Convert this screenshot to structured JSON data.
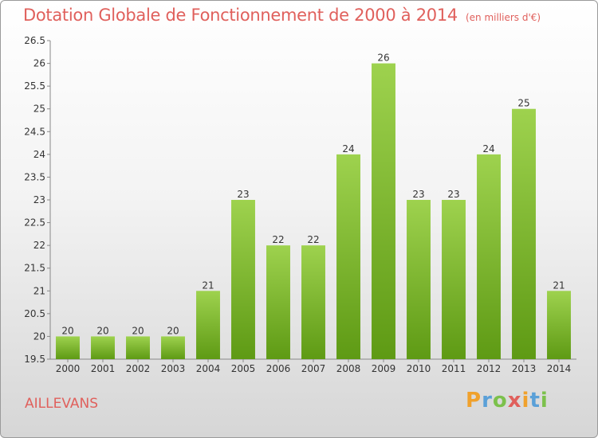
{
  "header": {
    "title": "Dotation Globale de Fonctionnement de 2000 à 2014",
    "subtitle": "(en milliers d'€)"
  },
  "footer": {
    "commune": "AILLEVANS",
    "logo_letters": [
      "P",
      "r",
      "o",
      "x",
      "i",
      "t",
      "i"
    ],
    "logo_colors": [
      "#f0a12c",
      "#5aa0d8",
      "#7cc14c",
      "#e0605c",
      "#f0a12c",
      "#5aa0d8",
      "#7cc14c"
    ]
  },
  "colors": {
    "bar_top": "#9ed24e",
    "bar_bottom": "#5e9a14",
    "title": "#e0605c"
  },
  "chart_data": {
    "type": "bar",
    "title": "Dotation Globale de Fonctionnement de 2000 à 2014",
    "subtitle": "(en milliers d'€)",
    "categories": [
      "2000",
      "2001",
      "2002",
      "2003",
      "2004",
      "2005",
      "2006",
      "2007",
      "2008",
      "2009",
      "2010",
      "2011",
      "2012",
      "2013",
      "2014"
    ],
    "values": [
      20,
      20,
      20,
      20,
      21,
      23,
      22,
      22,
      24,
      26,
      23,
      23,
      24,
      25,
      21
    ],
    "xlabel": "",
    "ylabel": "",
    "ylim": [
      19.5,
      26.5
    ],
    "yticks": [
      19.5,
      20,
      20.5,
      21,
      21.5,
      22,
      22.5,
      23,
      23.5,
      24,
      24.5,
      25,
      25.5,
      26,
      26.5
    ],
    "grid": false,
    "legend": "none"
  }
}
